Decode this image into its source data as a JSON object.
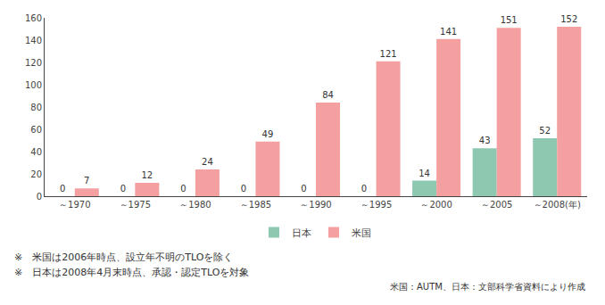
{
  "chart_data": {
    "type": "bar",
    "categories": [
      "～1970",
      "～1975",
      "～1980",
      "～1985",
      "～1990",
      "～1995",
      "～2000",
      "～2005",
      "～2008(年)"
    ],
    "series": [
      {
        "name": "日本",
        "color": "#8ec8b0",
        "values": [
          0,
          0,
          0,
          0,
          0,
          0,
          14,
          43,
          52
        ]
      },
      {
        "name": "米国",
        "color": "#f4a0a0",
        "values": [
          7,
          12,
          24,
          49,
          84,
          121,
          141,
          151,
          152
        ]
      }
    ],
    "ylim": [
      0,
      160
    ],
    "yticks": [
      0,
      20,
      40,
      60,
      80,
      100,
      120,
      140,
      160
    ],
    "grid": false,
    "data_labels": true,
    "legend": "bottom",
    "annotations": [
      "※　米国は2006年時点、設立年不明のTLOを除く",
      "※　日本は2008年4月末時点、承認・認定TLOを対象",
      "米国：AUTM、日本：文部科学省資料により作成"
    ]
  }
}
